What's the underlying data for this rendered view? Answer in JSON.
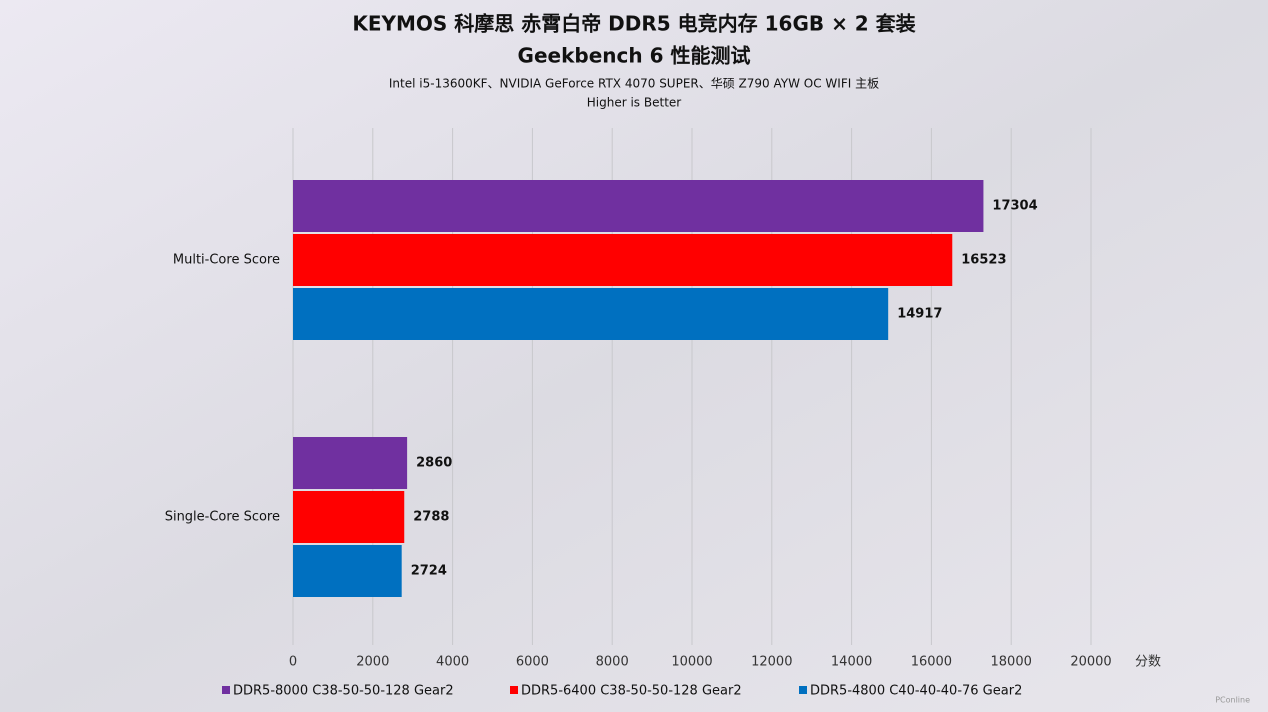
{
  "chart_data": {
    "type": "bar",
    "orientation": "horizontal",
    "title": "KEYMOS 科摩思 赤霄白帝 DDR5 电竞内存 16GB × 2 套装",
    "subtitle": "Geekbench 6 性能测试",
    "notes": [
      "Intel i5-13600KF、NVIDIA GeForce RTX 4070 SUPER、华硕 Z790 AYW OC WIFI 主板",
      "Higher is Better"
    ],
    "xlabel": "分数",
    "categories": [
      "Multi-Core Score",
      "Single-Core Score"
    ],
    "series": [
      {
        "name": "DDR5-8000 C38-50-50-128 Gear2",
        "color": "#7030a0",
        "values": [
          17304,
          2860
        ]
      },
      {
        "name": "DDR5-6400 C38-50-50-128 Gear2",
        "color": "#ff0000",
        "values": [
          16523,
          2788
        ]
      },
      {
        "name": "DDR5-4800 C40-40-40-76 Gear2",
        "color": "#0070c0",
        "values": [
          14917,
          2724
        ]
      }
    ],
    "xlim": [
      0,
      20000
    ],
    "xticks": [
      0,
      2000,
      4000,
      6000,
      8000,
      10000,
      12000,
      14000,
      16000,
      18000,
      20000
    ],
    "grid": true,
    "legend": "bottom",
    "watermark": "PConline"
  }
}
